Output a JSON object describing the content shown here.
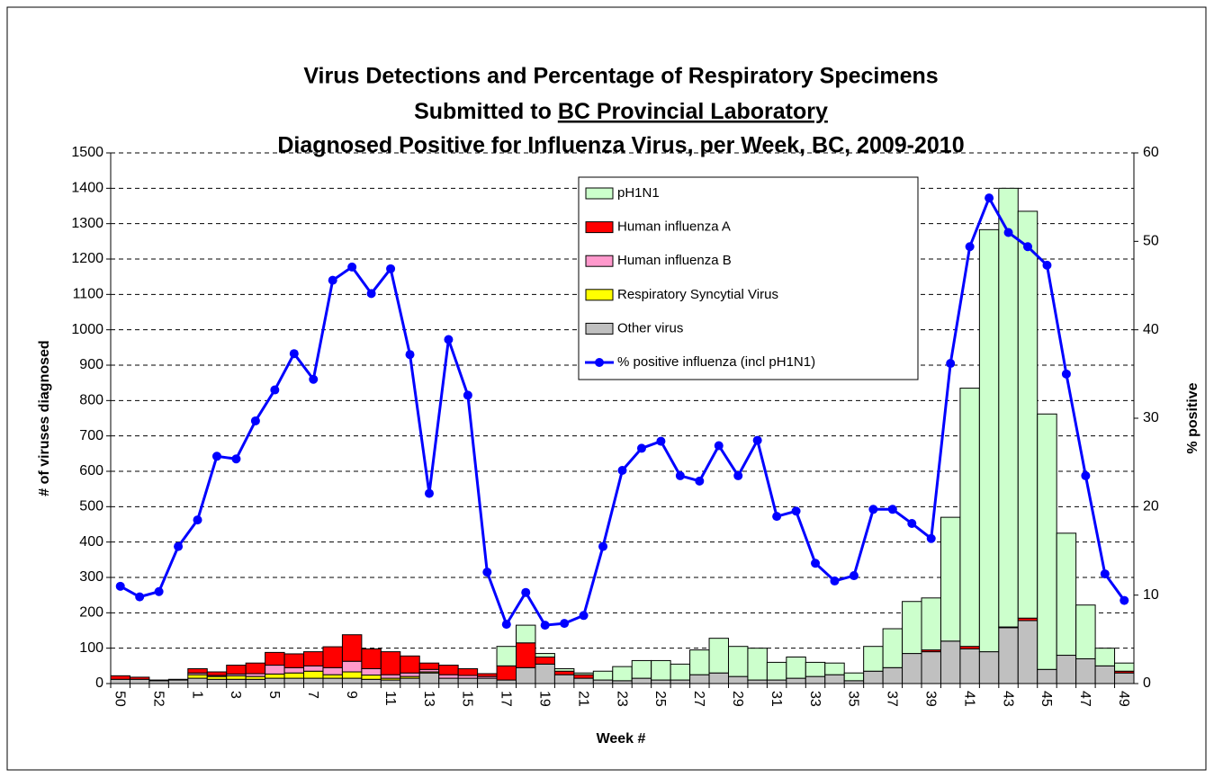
{
  "chart_data": {
    "type": "bar",
    "stacked": true,
    "title": [
      "Virus Detections and Percentage of Respiratory Specimens",
      "Submitted to",
      "Diagnosed Positive for Influenza Virus, per Week, BC, 2009-2010"
    ],
    "title_underlined": "BC Provincial Laboratory",
    "x_label": "Week #",
    "y_label": "# of viruses diagnosed",
    "y2_label": "% positive",
    "categories": [
      "50",
      null,
      "52",
      null,
      "1",
      null,
      "3",
      null,
      "5",
      null,
      "7",
      null,
      "9",
      null,
      "11",
      null,
      "13",
      null,
      "15",
      null,
      "17",
      null,
      "19",
      null,
      "21",
      null,
      "23",
      null,
      "25",
      null,
      "27",
      null,
      "29",
      null,
      "31",
      null,
      "33",
      null,
      "35",
      null,
      "37",
      null,
      "39",
      null,
      "41",
      null,
      "43",
      null,
      "45",
      null,
      "47",
      null,
      "49"
    ],
    "series": [
      {
        "name": "Other virus",
        "color": "#c0c0c0",
        "values": [
          12,
          12,
          8,
          10,
          15,
          12,
          12,
          12,
          15,
          15,
          15,
          15,
          15,
          12,
          10,
          15,
          30,
          15,
          15,
          15,
          10,
          45,
          55,
          25,
          15,
          10,
          8,
          15,
          10,
          10,
          25,
          30,
          20,
          10,
          10,
          15,
          20,
          25,
          8,
          35,
          45,
          85,
          90,
          120,
          98,
          90,
          158,
          178,
          40,
          80,
          70,
          50,
          30
        ]
      },
      {
        "name": "Respiratory Syncytial Virus",
        "color": "#ffff00",
        "values": [
          0,
          0,
          0,
          0,
          10,
          8,
          10,
          8,
          12,
          15,
          20,
          10,
          18,
          12,
          5,
          5,
          3,
          0,
          0,
          0,
          0,
          0,
          0,
          0,
          0,
          0,
          0,
          0,
          0,
          0,
          0,
          0,
          0,
          0,
          0,
          0,
          0,
          0,
          0,
          0,
          0,
          0,
          0,
          0,
          0,
          0,
          0,
          0,
          0,
          0,
          0,
          0,
          0
        ]
      },
      {
        "name": "Human influenza B",
        "color": "#ff99cc",
        "values": [
          0,
          0,
          0,
          0,
          5,
          3,
          5,
          8,
          25,
          15,
          15,
          20,
          30,
          18,
          10,
          10,
          7,
          10,
          8,
          5,
          0,
          0,
          0,
          0,
          0,
          0,
          0,
          0,
          0,
          0,
          0,
          0,
          0,
          0,
          0,
          0,
          0,
          0,
          0,
          0,
          0,
          0,
          0,
          0,
          0,
          0,
          0,
          0,
          0,
          0,
          0,
          0,
          0
        ]
      },
      {
        "name": "Human influenza A",
        "color": "#ff0000",
        "values": [
          10,
          6,
          2,
          2,
          12,
          10,
          25,
          30,
          36,
          39,
          40,
          59,
          75,
          56,
          65,
          48,
          18,
          27,
          19,
          8,
          40,
          70,
          20,
          10,
          10,
          0,
          0,
          0,
          0,
          0,
          0,
          0,
          0,
          0,
          0,
          0,
          0,
          0,
          0,
          0,
          0,
          0,
          5,
          0,
          7,
          0,
          2,
          7,
          0,
          0,
          0,
          0,
          5
        ]
      },
      {
        "name": "pH1N1",
        "color": "#ccffcc",
        "values": [
          0,
          0,
          0,
          0,
          0,
          0,
          0,
          0,
          0,
          0,
          0,
          0,
          0,
          0,
          0,
          0,
          0,
          0,
          0,
          0,
          55,
          50,
          10,
          7,
          5,
          25,
          40,
          50,
          55,
          45,
          70,
          98,
          85,
          90,
          50,
          60,
          40,
          33,
          22,
          70,
          110,
          147,
          147,
          350,
          730,
          1193,
          1240,
          1150,
          722,
          345,
          152,
          50,
          23
        ]
      },
      {
        "name": "% positive influenza (incl pH1N1)",
        "color": "#0000ff",
        "type": "line",
        "axis": "y2",
        "values": [
          11,
          9.8,
          10.4,
          15.5,
          18.5,
          25.7,
          25.4,
          29.7,
          33.2,
          37.3,
          34.4,
          45.6,
          47.1,
          44.1,
          46.9,
          37.2,
          21.5,
          38.9,
          32.6,
          12.6,
          6.7,
          10.3,
          6.6,
          6.8,
          7.7,
          15.5,
          24.1,
          26.6,
          27.4,
          23.5,
          22.9,
          26.9,
          23.5,
          27.5,
          18.9,
          19.5,
          13.6,
          11.6,
          12.2,
          19.7,
          19.7,
          18.1,
          16.4,
          36.2,
          49.4,
          54.9,
          51.0,
          49.4,
          47.3,
          35.0,
          23.5,
          12.4,
          9.4
        ]
      }
    ],
    "ylim": [
      0,
      1500
    ],
    "yticks": [
      0,
      100,
      200,
      300,
      400,
      500,
      600,
      700,
      800,
      900,
      1000,
      1100,
      1200,
      1300,
      1400,
      1500
    ],
    "y2lim": [
      0,
      60
    ],
    "y2ticks": [
      0,
      10,
      20,
      30,
      40,
      50,
      60
    ],
    "grid": true,
    "legend": "top-right"
  }
}
